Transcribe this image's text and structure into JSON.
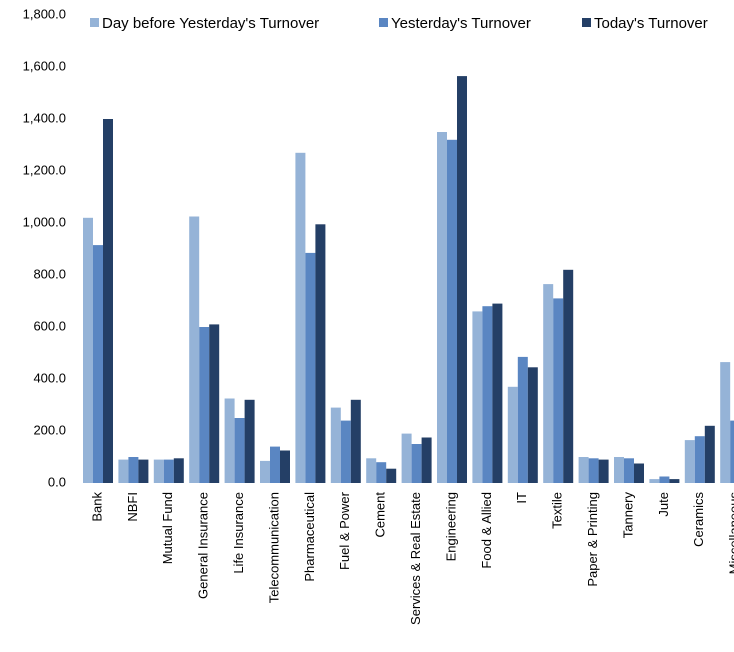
{
  "chart_data": {
    "type": "bar",
    "categories": [
      "Bank",
      "NBFI",
      "Mutual Fund",
      "General Insurance",
      "Life Insurance",
      "Telecommunication",
      "Pharmaceutical",
      "Fuel & Power",
      "Cement",
      "Services & Real Estate",
      "Engineering",
      "Food & Allied",
      "IT",
      "Textile",
      "Paper & Printing",
      "Tannery",
      "Jute",
      "Ceramics",
      "Miscellaneous"
    ],
    "series": [
      {
        "name": "Day before Yesterday's Turnover",
        "color": "#95b3d7",
        "values": [
          1020,
          90,
          90,
          1025,
          325,
          85,
          1270,
          290,
          95,
          190,
          1350,
          660,
          370,
          765,
          100,
          100,
          15,
          165,
          465
        ]
      },
      {
        "name": "Yesterday's Turnover",
        "color": "#5a86c2",
        "values": [
          915,
          100,
          90,
          600,
          250,
          140,
          885,
          240,
          80,
          150,
          1320,
          680,
          485,
          710,
          95,
          95,
          25,
          180,
          240
        ]
      },
      {
        "name": "Today's Turnover",
        "color": "#243f66",
        "values": [
          1400,
          90,
          95,
          610,
          320,
          125,
          995,
          320,
          55,
          175,
          1565,
          690,
          445,
          820,
          90,
          75,
          15,
          220,
          null
        ]
      }
    ],
    "ylim": [
      0,
      1800
    ],
    "yticks": [
      {
        "value": 0,
        "label": "0.0"
      },
      {
        "value": 200,
        "label": "200.0"
      },
      {
        "value": 400,
        "label": "400.0"
      },
      {
        "value": 600,
        "label": "600.0"
      },
      {
        "value": 800,
        "label": "800.0"
      },
      {
        "value": 1000,
        "label": "1,000.0"
      },
      {
        "value": 1200,
        "label": "1,200.0"
      },
      {
        "value": 1400,
        "label": "1,400.0"
      },
      {
        "value": 1600,
        "label": "1,600.0"
      },
      {
        "value": 1800,
        "label": "1,800.0"
      }
    ],
    "grid": false,
    "legend": "top"
  }
}
